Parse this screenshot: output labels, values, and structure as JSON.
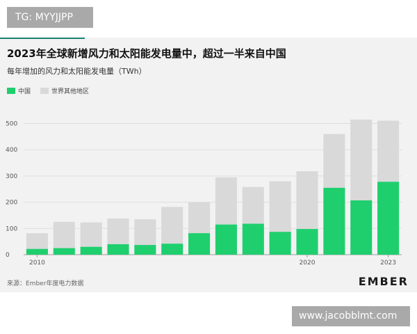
{
  "badge": {
    "text": "TG: MYYJJPP"
  },
  "watermark": {
    "text": "www.jacobblmt.com"
  },
  "brand": {
    "logo": "EMBER"
  },
  "footer": {
    "source": "来源：Ember年度电力数据"
  },
  "colors": {
    "china": "#1fcf6e",
    "rest": "#d9d9d9",
    "accent": "#1f7f73"
  },
  "chart_data": {
    "type": "bar",
    "title": "2023年全球新增风力和太阳能发电量中，超过一半来自中国",
    "subtitle": "每年增加的风力和太阳能发电量（TWh）",
    "legend": [
      "中国",
      "世界其他地区"
    ],
    "categories": [
      "2010",
      "2011",
      "2012",
      "2013",
      "2014",
      "2015",
      "2016",
      "2017",
      "2018",
      "2019",
      "2020",
      "2021",
      "2022",
      "2023"
    ],
    "x_tick_labels": [
      "2010",
      "2020",
      "2023"
    ],
    "series": [
      {
        "name": "中国",
        "values": [
          22,
          25,
          30,
          40,
          37,
          42,
          82,
          115,
          118,
          87,
          98,
          255,
          207,
          278
        ]
      },
      {
        "name": "世界其他地区",
        "values": [
          60,
          100,
          93,
          98,
          98,
          140,
          118,
          180,
          140,
          193,
          220,
          205,
          308,
          233
        ]
      }
    ],
    "stacked": true,
    "yticks": [
      0,
      100,
      200,
      300,
      400,
      500
    ],
    "ylim": [
      0,
      520
    ],
    "grid": true,
    "legend_position": "top-left"
  }
}
